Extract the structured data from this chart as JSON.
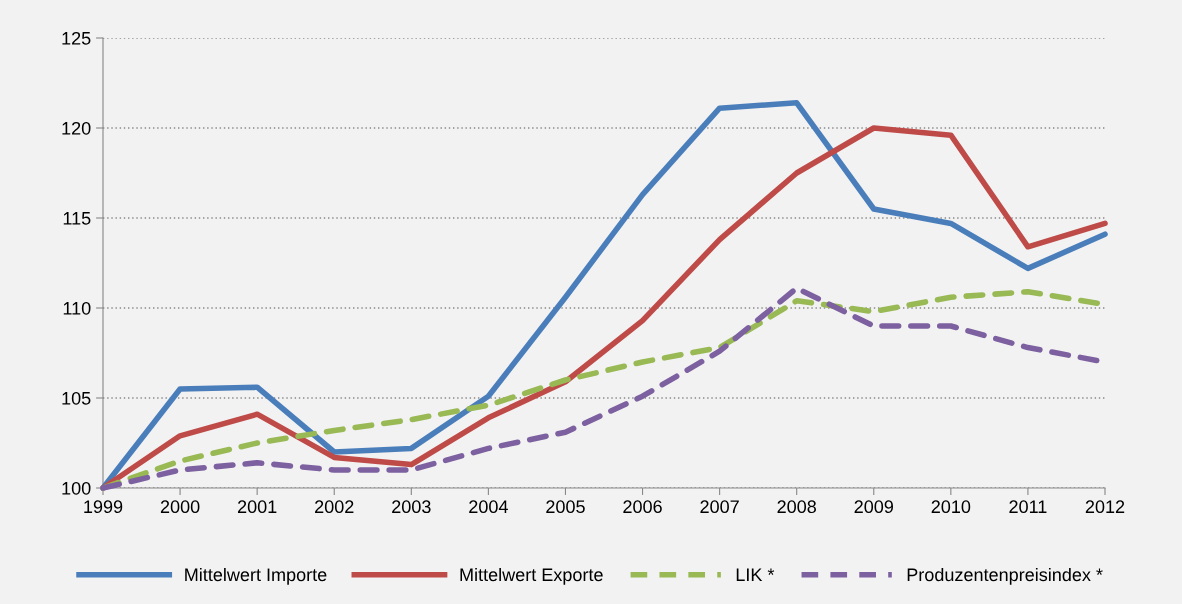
{
  "chart_data": {
    "type": "line",
    "x": [
      1999,
      2000,
      2001,
      2002,
      2003,
      2004,
      2005,
      2006,
      2007,
      2008,
      2009,
      2010,
      2011,
      2012
    ],
    "series": [
      {
        "name": "Mittelwert Importe",
        "color": "#4a7ebb",
        "line_style": "solid",
        "values": [
          100,
          105.5,
          105.6,
          102.0,
          102.2,
          105.1,
          110.6,
          116.3,
          121.1,
          121.4,
          115.5,
          114.7,
          112.2,
          114.1
        ]
      },
      {
        "name": "Mittelwert Exporte",
        "color": "#be4b48",
        "line_style": "solid",
        "values": [
          100,
          102.9,
          104.1,
          101.7,
          101.3,
          103.9,
          105.9,
          109.3,
          113.8,
          117.5,
          120.0,
          119.6,
          113.4,
          114.7
        ]
      },
      {
        "name": "LIK *",
        "color": "#98b954",
        "line_style": "dashed",
        "values": [
          100,
          101.5,
          102.5,
          103.2,
          103.8,
          104.6,
          106.0,
          107.0,
          107.8,
          110.4,
          109.8,
          110.6,
          110.9,
          110.2
        ]
      },
      {
        "name": "Produzentenpreisindex *",
        "color": "#7d60a0",
        "line_style": "dashed",
        "values": [
          100,
          101.0,
          101.4,
          101.0,
          101.0,
          102.2,
          103.1,
          105.1,
          107.6,
          111.1,
          109.0,
          109.0,
          107.8,
          107.0
        ]
      }
    ],
    "xlim": [
      1999,
      2012
    ],
    "xticks": [
      1999,
      2000,
      2001,
      2002,
      2003,
      2004,
      2005,
      2006,
      2007,
      2008,
      2009,
      2010,
      2011,
      2012
    ],
    "ylim": [
      100,
      125
    ],
    "yticks": [
      100,
      105,
      110,
      115,
      120,
      125
    ],
    "grid": "y",
    "legend": "bottom",
    "marker": "none"
  }
}
